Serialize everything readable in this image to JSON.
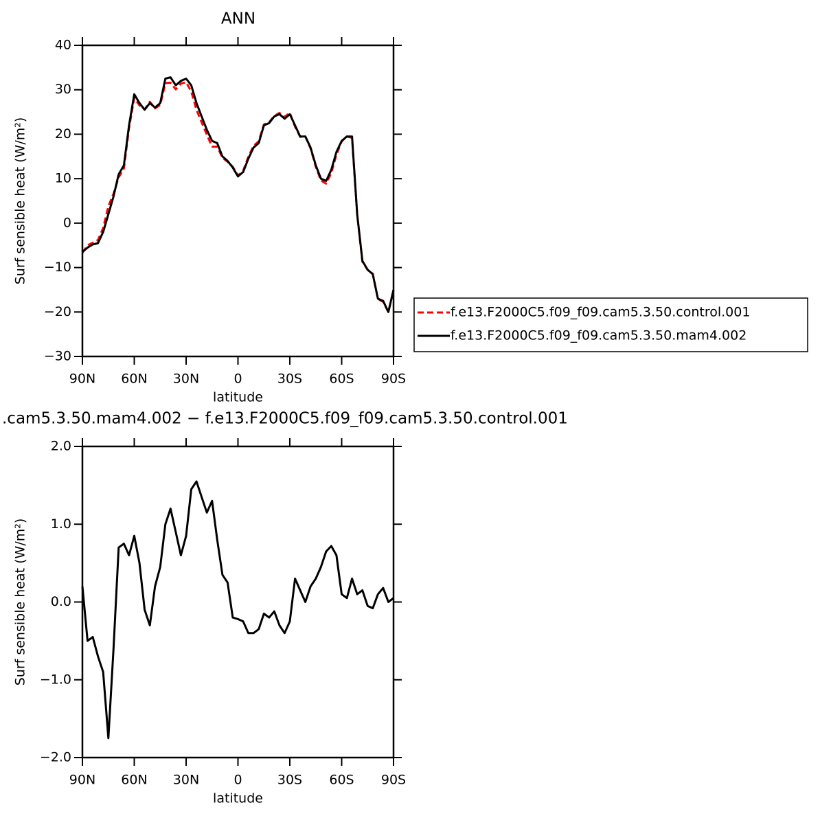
{
  "chart_data": [
    {
      "type": "line",
      "title": "ANN",
      "xlabel": "latitude",
      "ylabel": "Surf sensible heat (W/m²)",
      "x": [
        90,
        87,
        84,
        81,
        78,
        75,
        72,
        69,
        66,
        63,
        60,
        57,
        54,
        51,
        48,
        45,
        42,
        39,
        36,
        33,
        30,
        27,
        24,
        21,
        18,
        15,
        12,
        9,
        6,
        3,
        0,
        -3,
        -6,
        -9,
        -12,
        -15,
        -18,
        -21,
        -24,
        -27,
        -30,
        -33,
        -36,
        -39,
        -42,
        -45,
        -48,
        -51,
        -54,
        -57,
        -60,
        -63,
        -66,
        -69,
        -72,
        -75,
        -78,
        -81,
        -84,
        -87,
        -90
      ],
      "xlim": [
        90,
        -90
      ],
      "xticks": [
        {
          "value": 90,
          "label": "90N"
        },
        {
          "value": 60,
          "label": "60N"
        },
        {
          "value": 30,
          "label": "30N"
        },
        0,
        {
          "value": -30,
          "label": "30S"
        },
        {
          "value": -60,
          "label": "60S"
        },
        {
          "value": -90,
          "label": "90S"
        }
      ],
      "ylim": [
        -30,
        40
      ],
      "yticks": [
        {
          "value": -30,
          "label": "−30"
        },
        {
          "value": -20,
          "label": "−20"
        },
        {
          "value": -10,
          "label": "−10"
        },
        0,
        10,
        20,
        30,
        40
      ],
      "legend": "right",
      "series": [
        {
          "name": "f.e13.F2000C5.f09_f09.cam5.3.50.control.001",
          "color": "#ff0000",
          "dash": "dashed",
          "values": [
            -6.7,
            -5.0,
            -4.4,
            -3.8,
            -1.1,
            3.8,
            6.6,
            10.3,
            12.3,
            21.4,
            28.2,
            26.5,
            25.6,
            27.3,
            25.8,
            26.6,
            31.5,
            31.6,
            30.1,
            31.4,
            31.7,
            29.6,
            25.5,
            22.7,
            19.9,
            17.2,
            17.2,
            14.7,
            13.8,
            12.7,
            10.7,
            11.8,
            14.9,
            17.4,
            18.4,
            22.2,
            22.7,
            24.1,
            24.8,
            23.9,
            24.8,
            21.7,
            19.4,
            19.5,
            16.8,
            12.7,
            9.6,
            8.9,
            11.3,
            15.4,
            18.4,
            19.5,
            19.2,
            1.9,
            -8.7,
            -10.5,
            -11.4,
            -17.1,
            -17.7,
            -20.0,
            -15.1
          ]
        },
        {
          "name": "f.e13.F2000C5.f09_f09.cam5.3.50.mam4.002",
          "color": "#000000",
          "dash": "solid",
          "values": [
            -6.5,
            -5.5,
            -4.8,
            -4.5,
            -2,
            2,
            6,
            11,
            13,
            22,
            29,
            27,
            25.5,
            27,
            26,
            27,
            32.5,
            32.8,
            31,
            32,
            32.5,
            31,
            27,
            24,
            21,
            18.5,
            18,
            15,
            14,
            12.5,
            10.5,
            11.5,
            14.5,
            17,
            18,
            22,
            22.5,
            24,
            24.5,
            23.5,
            24.5,
            22,
            19.5,
            19.5,
            17,
            13,
            10,
            9.5,
            12,
            16,
            18.5,
            19.5,
            19.5,
            2,
            -8.5,
            -10.5,
            -11.5,
            -17,
            -17.5,
            -20,
            -15
          ]
        }
      ]
    },
    {
      "type": "line",
      "title": ".cam5.3.50.mam4.002 − f.e13.F2000C5.f09_f09.cam5.3.50.control.001",
      "xlabel": "latitude",
      "ylabel": "Surf sensible heat (W/m²)",
      "x": [
        90,
        87,
        84,
        81,
        78,
        75,
        72,
        69,
        66,
        63,
        60,
        57,
        54,
        51,
        48,
        45,
        42,
        39,
        36,
        33,
        30,
        27,
        24,
        21,
        18,
        15,
        12,
        9,
        6,
        3,
        0,
        -3,
        -6,
        -9,
        -12,
        -15,
        -18,
        -21,
        -24,
        -27,
        -30,
        -33,
        -36,
        -39,
        -42,
        -45,
        -48,
        -51,
        -54,
        -57,
        -60,
        -63,
        -66,
        -69,
        -72,
        -75,
        -78,
        -81,
        -84,
        -87,
        -90
      ],
      "xlim": [
        90,
        -90
      ],
      "xticks": [
        {
          "value": 90,
          "label": "90N"
        },
        {
          "value": 60,
          "label": "60N"
        },
        {
          "value": 30,
          "label": "30N"
        },
        0,
        {
          "value": -30,
          "label": "30S"
        },
        {
          "value": -60,
          "label": "60S"
        },
        {
          "value": -90,
          "label": "90S"
        }
      ],
      "ylim": [
        -2,
        2
      ],
      "yticks": [
        {
          "value": -2,
          "label": "−2.0"
        },
        {
          "value": -1,
          "label": "−1.0"
        },
        {
          "value": 0,
          "label": "0.0"
        },
        {
          "value": 1,
          "label": "1.0"
        },
        {
          "value": 2,
          "label": "2.0"
        }
      ],
      "series": [
        {
          "color": "#000000",
          "dash": "solid",
          "values": [
            0.2,
            -0.5,
            -0.45,
            -0.7,
            -0.9,
            -1.75,
            -0.6,
            0.7,
            0.75,
            0.6,
            0.85,
            0.5,
            -0.1,
            -0.3,
            0.2,
            0.45,
            1.0,
            1.2,
            0.9,
            0.6,
            0.85,
            1.45,
            1.55,
            1.35,
            1.15,
            1.3,
            0.8,
            0.35,
            0.25,
            -0.2,
            -0.22,
            -0.25,
            -0.4,
            -0.4,
            -0.35,
            -0.15,
            -0.2,
            -0.12,
            -0.3,
            -0.4,
            -0.25,
            0.3,
            0.15,
            0.0,
            0.2,
            0.3,
            0.45,
            0.65,
            0.72,
            0.6,
            0.1,
            0.05,
            0.3,
            0.1,
            0.15,
            -0.05,
            -0.08,
            0.1,
            0.18,
            0.0,
            0.05
          ]
        }
      ]
    }
  ]
}
